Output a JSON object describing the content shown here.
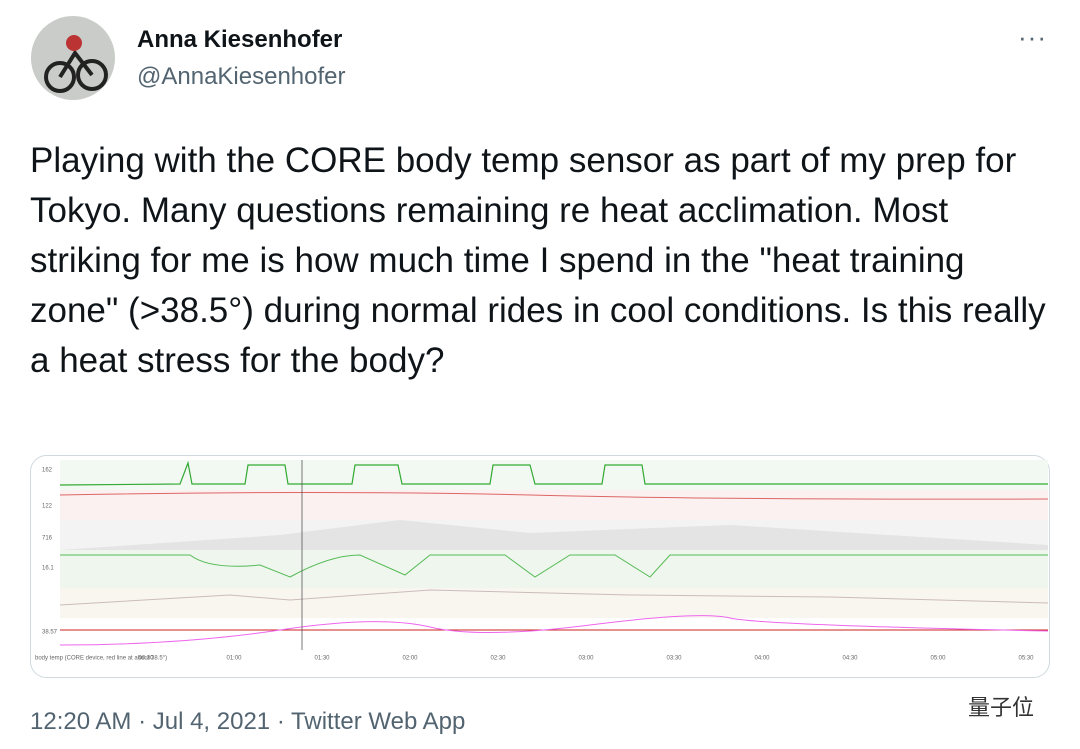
{
  "author": {
    "name": "Anna Kiesenhofer",
    "handle": "@AnnaKiesenhofer"
  },
  "tweet": {
    "text": "Playing with the CORE body temp sensor as part of my prep for Tokyo. Many questions remaining re heat acclimation. Most striking for me is how much time I spend in the \"heat training zone\" (>38.5°) during normal rides in cool conditions. Is this really a heat stress for the body?",
    "timestamp": "12:20 AM · Jul 4, 2021 · Twitter Web App"
  },
  "media": {
    "row_labels": [
      "162",
      "122",
      "716",
      "16.1",
      "38.57"
    ],
    "caption": "body temp (CORE device, red line at about 38.5°)",
    "time_labels": [
      "00:30",
      "01:00",
      "01:30",
      "02:00",
      "02:30",
      "03:00",
      "03:30",
      "04:00",
      "04:30",
      "05:00",
      "05:30"
    ]
  },
  "watermark": "量子位"
}
